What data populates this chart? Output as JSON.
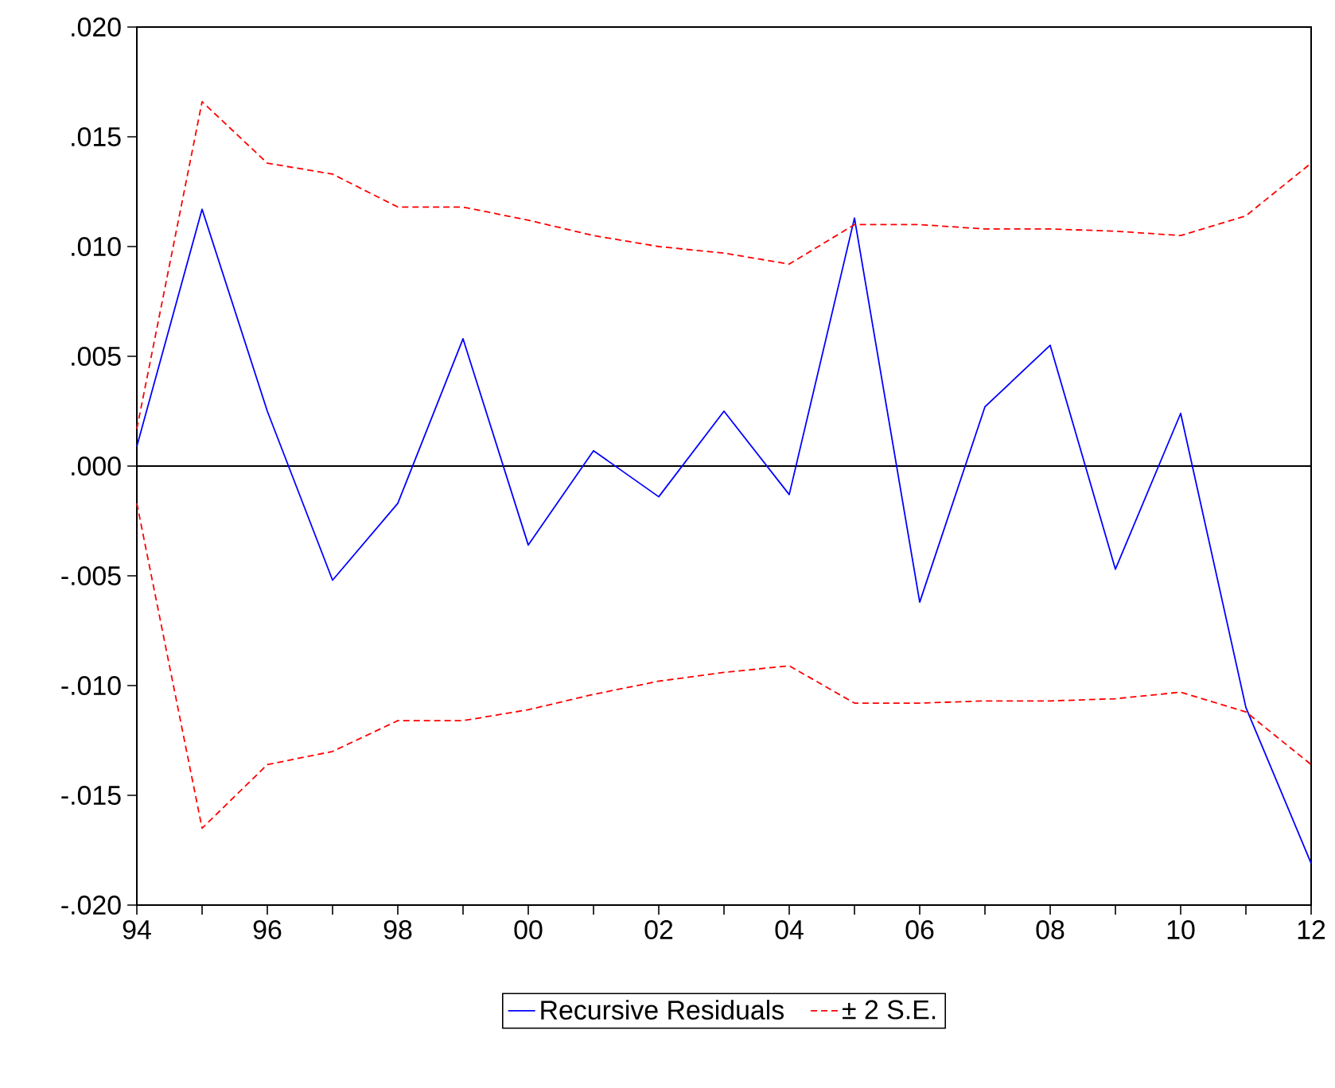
{
  "chart_data": {
    "type": "line",
    "x": [
      1994,
      1995,
      1996,
      1997,
      1998,
      1999,
      2000,
      2001,
      2002,
      2003,
      2004,
      2005,
      2006,
      2007,
      2008,
      2009,
      2010,
      2011,
      2012
    ],
    "series": [
      {
        "name": "Recursive Residuals",
        "color": "#0000ff",
        "line_style": "solid",
        "values": [
          0.0009,
          0.0117,
          0.0025,
          -0.0052,
          -0.0017,
          0.0058,
          -0.0036,
          0.0007,
          -0.0014,
          0.0025,
          -0.0013,
          0.0113,
          -0.0062,
          0.0027,
          0.0055,
          -0.0047,
          0.0024,
          -0.011,
          -0.0181
        ]
      },
      {
        "name": "± 2 S.E.",
        "color": "#ff0000",
        "line_style": "dashed",
        "values": [
          0.0017,
          0.0166,
          0.0138,
          0.0133,
          0.0118,
          0.0118,
          0.0112,
          0.0105,
          0.01,
          0.0097,
          0.0092,
          0.011,
          0.011,
          0.0108,
          0.0108,
          0.0107,
          0.0105,
          0.0114,
          0.0138
        ]
      },
      {
        "color": "#ff0000",
        "line_style": "dashed",
        "values": [
          -0.0017,
          -0.0165,
          -0.0136,
          -0.013,
          -0.0116,
          -0.0116,
          -0.0111,
          -0.0104,
          -0.0098,
          -0.0094,
          -0.0091,
          -0.0108,
          -0.0108,
          -0.0107,
          -0.0107,
          -0.0106,
          -0.0103,
          -0.0112,
          -0.0136
        ]
      }
    ],
    "xlim": [
      1994,
      2012
    ],
    "xticks": [
      {
        "value": 1994,
        "label": "94"
      },
      {
        "value": 1995,
        "label": null
      },
      {
        "value": 1996,
        "label": "96"
      },
      {
        "value": 1997,
        "label": null
      },
      {
        "value": 1998,
        "label": "98"
      },
      {
        "value": 1999,
        "label": null
      },
      {
        "value": 2000,
        "label": "00"
      },
      {
        "value": 2001,
        "label": null
      },
      {
        "value": 2002,
        "label": "02"
      },
      {
        "value": 2003,
        "label": null
      },
      {
        "value": 2004,
        "label": "04"
      },
      {
        "value": 2005,
        "label": null
      },
      {
        "value": 2006,
        "label": "06"
      },
      {
        "value": 2007,
        "label": null
      },
      {
        "value": 2008,
        "label": "08"
      },
      {
        "value": 2009,
        "label": null
      },
      {
        "value": 2010,
        "label": "10"
      },
      {
        "value": 2011,
        "label": null
      },
      {
        "value": 2012,
        "label": "12"
      }
    ],
    "ylim": [
      -0.02,
      0.02
    ],
    "yticks": [
      {
        "value": -0.02,
        "label": "-.020"
      },
      {
        "value": -0.015,
        "label": "-.015"
      },
      {
        "value": -0.01,
        "label": "-.010"
      },
      {
        "value": -0.005,
        "label": "-.005"
      },
      {
        "value": 0,
        "label": ".000"
      },
      {
        "value": 0.005,
        "label": ".005"
      },
      {
        "value": 0.01,
        "label": ".010"
      },
      {
        "value": 0.015,
        "label": ".015"
      },
      {
        "value": 0.02,
        "label": ".020"
      }
    ],
    "ref_lines": [
      {
        "axis": "y",
        "value": 0,
        "color": "#000000",
        "line_style": "solid"
      }
    ],
    "legend": "bottom"
  }
}
